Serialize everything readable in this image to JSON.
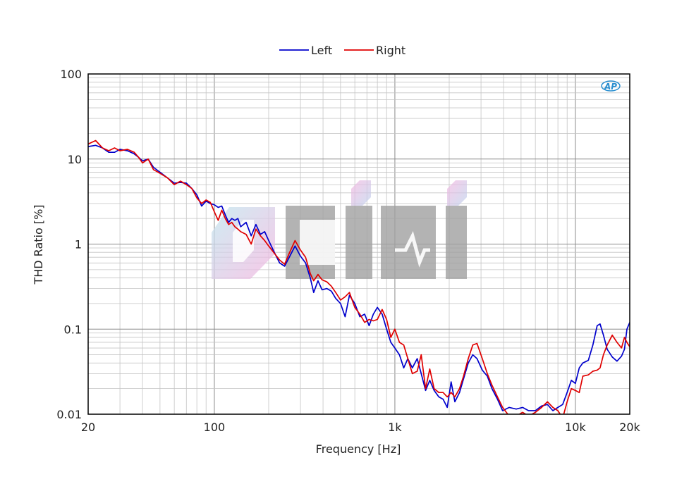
{
  "chart_data": {
    "type": "line",
    "title": "",
    "xlabel": "Frequency [Hz]",
    "ylabel": "THD Ratio [%]",
    "x_scale": "log",
    "y_scale": "log",
    "xlim": [
      20,
      20000
    ],
    "ylim": [
      0.01,
      100
    ],
    "grid": true,
    "legend_position": "top-center",
    "x_ticks": [
      {
        "value": 20,
        "label": "20"
      },
      {
        "value": 100,
        "label": "100"
      },
      {
        "value": 1000,
        "label": "1k"
      },
      {
        "value": 10000,
        "label": "10k"
      },
      {
        "value": 20000,
        "label": "20k"
      }
    ],
    "y_ticks": [
      {
        "value": 0.01,
        "label": "0.01"
      },
      {
        "value": 0.1,
        "label": "0.1"
      },
      {
        "value": 1,
        "label": "1"
      },
      {
        "value": 10,
        "label": "10"
      },
      {
        "value": 100,
        "label": "100"
      }
    ],
    "series": [
      {
        "name": "Left",
        "color": "#0000cc",
        "points": [
          [
            20,
            14
          ],
          [
            22,
            14.5
          ],
          [
            24,
            13.5
          ],
          [
            26,
            12
          ],
          [
            28,
            12
          ],
          [
            30,
            13
          ],
          [
            33,
            12.5
          ],
          [
            36,
            11.5
          ],
          [
            38,
            10.5
          ],
          [
            40,
            9.5
          ],
          [
            43,
            10
          ],
          [
            46,
            8
          ],
          [
            50,
            7
          ],
          [
            55,
            6
          ],
          [
            60,
            5.2
          ],
          [
            65,
            5.3
          ],
          [
            70,
            5.2
          ],
          [
            75,
            4.5
          ],
          [
            80,
            3.8
          ],
          [
            85,
            2.8
          ],
          [
            90,
            3.2
          ],
          [
            95,
            3.0
          ],
          [
            100,
            2.9
          ],
          [
            105,
            2.7
          ],
          [
            110,
            2.8
          ],
          [
            115,
            2.2
          ],
          [
            120,
            1.8
          ],
          [
            125,
            2.0
          ],
          [
            130,
            1.9
          ],
          [
            135,
            2.0
          ],
          [
            140,
            1.6
          ],
          [
            150,
            1.8
          ],
          [
            160,
            1.25
          ],
          [
            170,
            1.7
          ],
          [
            180,
            1.3
          ],
          [
            190,
            1.4
          ],
          [
            200,
            1.1
          ],
          [
            215,
            0.8
          ],
          [
            230,
            0.6
          ],
          [
            245,
            0.55
          ],
          [
            260,
            0.7
          ],
          [
            280,
            0.95
          ],
          [
            300,
            0.72
          ],
          [
            320,
            0.6
          ],
          [
            340,
            0.4
          ],
          [
            355,
            0.27
          ],
          [
            375,
            0.37
          ],
          [
            395,
            0.29
          ],
          [
            420,
            0.3
          ],
          [
            445,
            0.28
          ],
          [
            470,
            0.23
          ],
          [
            500,
            0.2
          ],
          [
            530,
            0.14
          ],
          [
            560,
            0.25
          ],
          [
            600,
            0.2
          ],
          [
            640,
            0.14
          ],
          [
            680,
            0.15
          ],
          [
            720,
            0.11
          ],
          [
            760,
            0.15
          ],
          [
            800,
            0.18
          ],
          [
            850,
            0.15
          ],
          [
            900,
            0.1
          ],
          [
            950,
            0.07
          ],
          [
            1000,
            0.06
          ],
          [
            1060,
            0.05
          ],
          [
            1120,
            0.035
          ],
          [
            1180,
            0.045
          ],
          [
            1250,
            0.035
          ],
          [
            1330,
            0.045
          ],
          [
            1400,
            0.03
          ],
          [
            1480,
            0.019
          ],
          [
            1560,
            0.025
          ],
          [
            1650,
            0.019
          ],
          [
            1750,
            0.016
          ],
          [
            1850,
            0.015
          ],
          [
            1950,
            0.012
          ],
          [
            2050,
            0.024
          ],
          [
            2150,
            0.014
          ],
          [
            2280,
            0.018
          ],
          [
            2400,
            0.026
          ],
          [
            2550,
            0.04
          ],
          [
            2700,
            0.05
          ],
          [
            2850,
            0.045
          ],
          [
            3050,
            0.033
          ],
          [
            3250,
            0.028
          ],
          [
            3450,
            0.02
          ],
          [
            3700,
            0.015
          ],
          [
            3950,
            0.011
          ],
          [
            4300,
            0.012
          ],
          [
            4700,
            0.0115
          ],
          [
            5100,
            0.012
          ],
          [
            5500,
            0.011
          ],
          [
            6000,
            0.011
          ],
          [
            6500,
            0.0125
          ],
          [
            7000,
            0.013
          ],
          [
            7500,
            0.011
          ],
          [
            8000,
            0.012
          ],
          [
            8500,
            0.013
          ],
          [
            9000,
            0.018
          ],
          [
            9500,
            0.025
          ],
          [
            10000,
            0.023
          ],
          [
            10500,
            0.035
          ],
          [
            11000,
            0.04
          ],
          [
            11800,
            0.043
          ],
          [
            12500,
            0.065
          ],
          [
            13200,
            0.11
          ],
          [
            13700,
            0.115
          ],
          [
            14300,
            0.085
          ],
          [
            15000,
            0.058
          ],
          [
            16000,
            0.047
          ],
          [
            17000,
            0.042
          ],
          [
            18000,
            0.048
          ],
          [
            18700,
            0.058
          ],
          [
            19300,
            0.1
          ],
          [
            20000,
            0.12
          ]
        ]
      },
      {
        "name": "Right",
        "color": "#e00000",
        "points": [
          [
            20,
            15
          ],
          [
            22,
            16.5
          ],
          [
            24,
            13.5
          ],
          [
            26,
            12.5
          ],
          [
            28,
            13.5
          ],
          [
            30,
            12.5
          ],
          [
            33,
            13
          ],
          [
            36,
            12
          ],
          [
            38,
            10.5
          ],
          [
            40,
            9
          ],
          [
            43,
            10
          ],
          [
            46,
            7.5
          ],
          [
            50,
            6.8
          ],
          [
            55,
            6
          ],
          [
            60,
            5
          ],
          [
            65,
            5.5
          ],
          [
            70,
            5
          ],
          [
            75,
            4.5
          ],
          [
            80,
            3.5
          ],
          [
            85,
            3
          ],
          [
            90,
            3.3
          ],
          [
            95,
            3.1
          ],
          [
            100,
            2.4
          ],
          [
            105,
            1.9
          ],
          [
            110,
            2.5
          ],
          [
            115,
            2.0
          ],
          [
            120,
            1.7
          ],
          [
            125,
            1.8
          ],
          [
            130,
            1.6
          ],
          [
            135,
            1.5
          ],
          [
            140,
            1.4
          ],
          [
            150,
            1.3
          ],
          [
            160,
            1.0
          ],
          [
            170,
            1.5
          ],
          [
            180,
            1.25
          ],
          [
            190,
            1.1
          ],
          [
            200,
            0.95
          ],
          [
            215,
            0.78
          ],
          [
            230,
            0.65
          ],
          [
            245,
            0.58
          ],
          [
            260,
            0.78
          ],
          [
            280,
            1.1
          ],
          [
            300,
            0.85
          ],
          [
            320,
            0.7
          ],
          [
            340,
            0.45
          ],
          [
            355,
            0.37
          ],
          [
            375,
            0.44
          ],
          [
            395,
            0.38
          ],
          [
            420,
            0.36
          ],
          [
            445,
            0.32
          ],
          [
            470,
            0.27
          ],
          [
            500,
            0.22
          ],
          [
            530,
            0.24
          ],
          [
            560,
            0.27
          ],
          [
            600,
            0.18
          ],
          [
            640,
            0.15
          ],
          [
            680,
            0.12
          ],
          [
            720,
            0.13
          ],
          [
            760,
            0.125
          ],
          [
            800,
            0.13
          ],
          [
            850,
            0.17
          ],
          [
            900,
            0.13
          ],
          [
            950,
            0.08
          ],
          [
            1000,
            0.1
          ],
          [
            1060,
            0.07
          ],
          [
            1120,
            0.065
          ],
          [
            1180,
            0.045
          ],
          [
            1250,
            0.03
          ],
          [
            1330,
            0.032
          ],
          [
            1400,
            0.05
          ],
          [
            1480,
            0.02
          ],
          [
            1560,
            0.034
          ],
          [
            1650,
            0.02
          ],
          [
            1750,
            0.018
          ],
          [
            1850,
            0.018
          ],
          [
            1950,
            0.016
          ],
          [
            2050,
            0.018
          ],
          [
            2150,
            0.016
          ],
          [
            2280,
            0.02
          ],
          [
            2400,
            0.028
          ],
          [
            2550,
            0.045
          ],
          [
            2700,
            0.065
          ],
          [
            2850,
            0.068
          ],
          [
            3050,
            0.045
          ],
          [
            3250,
            0.03
          ],
          [
            3450,
            0.022
          ],
          [
            3700,
            0.016
          ],
          [
            3950,
            0.012
          ],
          [
            4300,
            0.0095
          ],
          [
            4700,
            0.0095
          ],
          [
            5100,
            0.0105
          ],
          [
            5500,
            0.0095
          ],
          [
            6000,
            0.0105
          ],
          [
            6500,
            0.012
          ],
          [
            7000,
            0.014
          ],
          [
            7500,
            0.012
          ],
          [
            8000,
            0.011
          ],
          [
            8500,
            0.009
          ],
          [
            9000,
            0.014
          ],
          [
            9500,
            0.02
          ],
          [
            10000,
            0.019
          ],
          [
            10500,
            0.018
          ],
          [
            11000,
            0.028
          ],
          [
            11800,
            0.029
          ],
          [
            12500,
            0.032
          ],
          [
            13200,
            0.033
          ],
          [
            13700,
            0.035
          ],
          [
            14300,
            0.05
          ],
          [
            15000,
            0.065
          ],
          [
            16000,
            0.085
          ],
          [
            17000,
            0.07
          ],
          [
            18000,
            0.06
          ],
          [
            18700,
            0.08
          ],
          [
            19300,
            0.07
          ],
          [
            20000,
            0.062
          ]
        ]
      }
    ]
  },
  "watermark": {
    "text": "",
    "logo_gradient": [
      "#c8e8f0",
      "#f0b8e0"
    ]
  },
  "badge": {
    "text": "AP",
    "color": "#2a8fd0"
  }
}
